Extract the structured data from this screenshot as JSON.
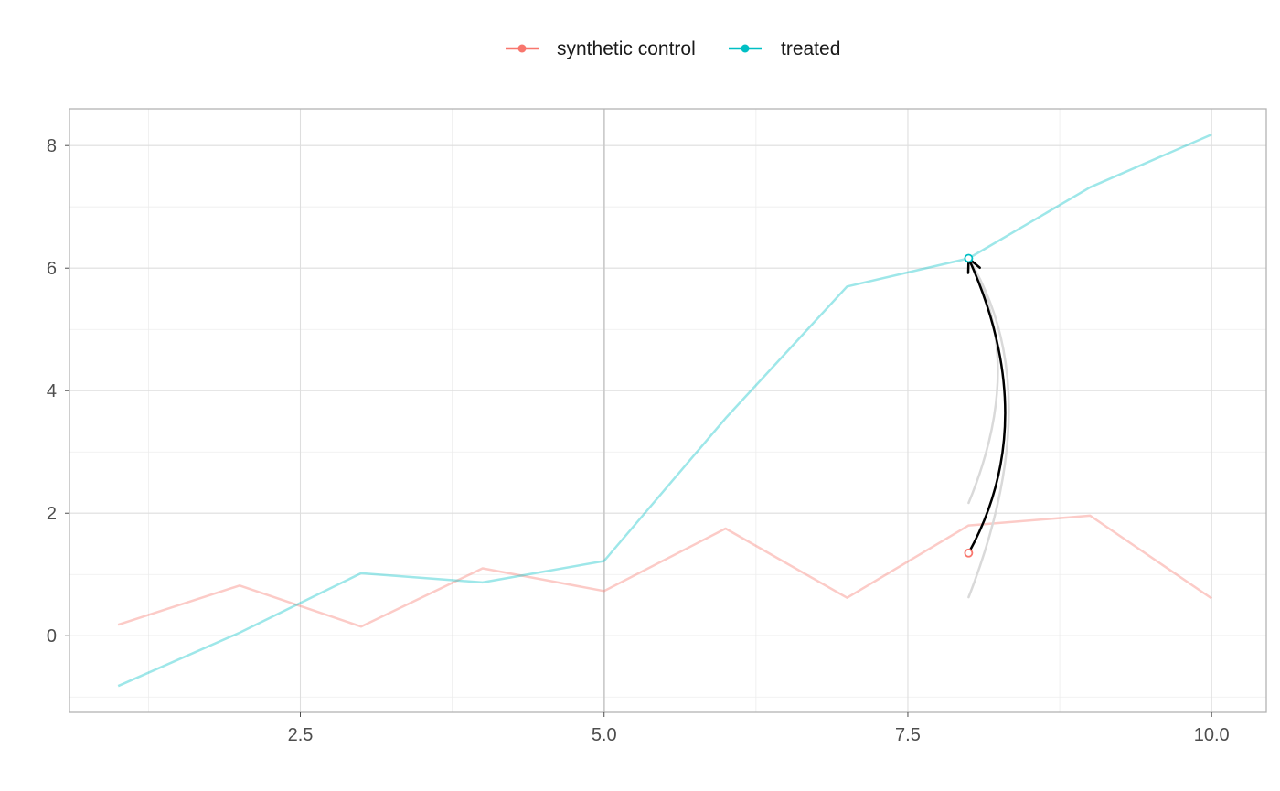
{
  "chart_data": {
    "type": "line",
    "title": "",
    "xlabel": "",
    "ylabel": "",
    "xlim": [
      0.6,
      10.45
    ],
    "ylim": [
      -1.25,
      8.6
    ],
    "x_ticks": [
      2.5,
      5.0,
      7.5,
      10.0
    ],
    "x_tick_labels": [
      "2.5",
      "5.0",
      "7.5",
      "10.0"
    ],
    "x_minor_ticks": [
      1.25,
      3.75,
      6.25,
      8.75
    ],
    "y_ticks": [
      0,
      2,
      4,
      6,
      8
    ],
    "y_tick_labels": [
      "0",
      "2",
      "4",
      "6",
      "8"
    ],
    "y_minor_ticks": [
      -1,
      1,
      3,
      5,
      7
    ],
    "grid": true,
    "legend_position": "top",
    "x": [
      1,
      2,
      3,
      4,
      5,
      6,
      7,
      8,
      9,
      10
    ],
    "series": [
      {
        "name": "synthetic control",
        "color": "#F8766D",
        "values": [
          0.18,
          0.82,
          0.15,
          1.1,
          0.73,
          1.75,
          0.62,
          1.8,
          1.96,
          0.61
        ]
      },
      {
        "name": "treated",
        "color": "#00BFC4",
        "values": [
          -0.82,
          0.05,
          1.02,
          0.87,
          1.22,
          3.55,
          5.7,
          6.16,
          7.32,
          8.18
        ]
      }
    ],
    "intervention_line": {
      "x": 5.0,
      "color": "#cccccc"
    },
    "annotation": {
      "type": "curved-arrow",
      "from": {
        "x": 8.0,
        "y": 1.35,
        "color": "#F8766D"
      },
      "to": {
        "x": 8.0,
        "y": 6.16,
        "color": "#00BFC4"
      },
      "arrow_color": "#000000",
      "shadow_color": "#d9d9d9"
    }
  }
}
